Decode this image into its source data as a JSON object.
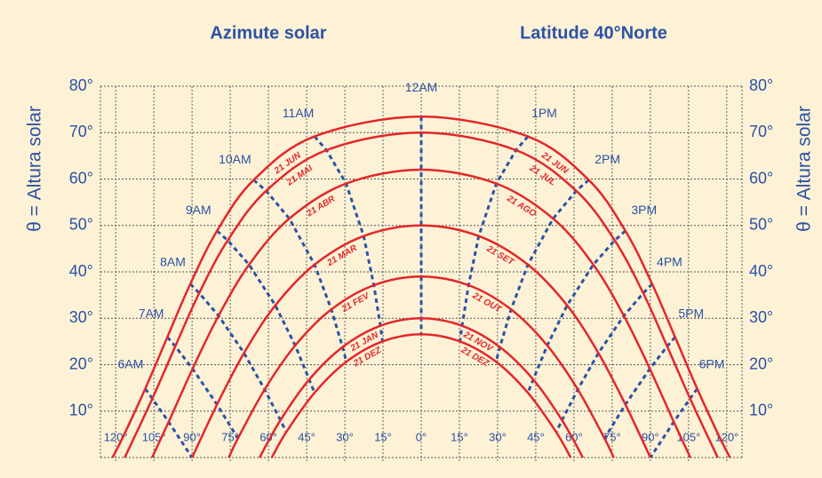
{
  "chart_data": {
    "type": "sunpath",
    "title": "Azimute solar",
    "subtitle": "Latitude 40°Norte",
    "ylabel": "θ = Altura solar",
    "xlim": [
      -126,
      126
    ],
    "ylim": [
      0,
      80
    ],
    "grid": true,
    "xticks": [
      {
        "value": -120,
        "label": "120°"
      },
      {
        "value": -105,
        "label": "105°"
      },
      {
        "value": -90,
        "label": "90°"
      },
      {
        "value": -75,
        "label": "75°"
      },
      {
        "value": -60,
        "label": "60°"
      },
      {
        "value": -45,
        "label": "45°"
      },
      {
        "value": -30,
        "label": "30°"
      },
      {
        "value": -15,
        "label": "15°"
      },
      {
        "value": 0,
        "label": "0°"
      },
      {
        "value": 15,
        "label": "15°"
      },
      {
        "value": 30,
        "label": "30°"
      },
      {
        "value": 45,
        "label": "45°"
      },
      {
        "value": 60,
        "label": "60°"
      },
      {
        "value": 75,
        "label": "75°"
      },
      {
        "value": 90,
        "label": "90°"
      },
      {
        "value": 105,
        "label": "105°"
      },
      {
        "value": 120,
        "label": "120°"
      }
    ],
    "yticks": [
      {
        "value": 10,
        "label": "10°"
      },
      {
        "value": 20,
        "label": "20°"
      },
      {
        "value": 30,
        "label": "30°"
      },
      {
        "value": 40,
        "label": "40°"
      },
      {
        "value": 50,
        "label": "50°"
      },
      {
        "value": 60,
        "label": "60°"
      },
      {
        "value": 70,
        "label": "70°"
      },
      {
        "value": 80,
        "label": "80°"
      }
    ],
    "series_color": "#e3272b",
    "hour_color": "#2c52a5",
    "series": [
      {
        "name": "21 JUN",
        "name_right": "21 JUN",
        "x": [
          -121.3,
          -117.3,
          -108.4,
          -99.7,
          -90.7,
          -80.2,
          -65.8,
          -41.9,
          0,
          41.9,
          65.8,
          80.2,
          90.7,
          99.7,
          108.4,
          117.3,
          121.3
        ],
        "values": [
          0,
          4.24,
          14.82,
          25.96,
          37.39,
          48.83,
          59.8,
          69.17,
          73.45,
          69.17,
          59.8,
          48.83,
          37.39,
          25.96,
          14.82,
          4.24,
          0
        ]
      },
      {
        "name": "21 MAI",
        "name_right": "21 JUL",
        "x": [
          -116.5,
          -114.8,
          -105.6,
          -96.6,
          -87.2,
          -76.0,
          -60.9,
          -37.2,
          0,
          37.2,
          60.9,
          76.0,
          87.2,
          96.6,
          105.6,
          114.8,
          116.5
        ],
        "values": [
          0,
          1.92,
          12.7,
          23.96,
          35.43,
          46.79,
          57.46,
          66.22,
          70,
          66.22,
          57.46,
          46.79,
          35.43,
          23.96,
          12.7,
          1.92,
          0
        ]
      },
      {
        "name": "21 ABR",
        "name_right": "21 AGO",
        "x": [
          -105.7,
          -99.2,
          -89.8,
          -79.6,
          -67.6,
          -51.8,
          -29.5,
          0,
          29.5,
          51.8,
          67.6,
          79.6,
          89.8,
          99.2,
          105.7
        ],
        "values": [
          0,
          7.68,
          19.12,
          30.54,
          41.56,
          51.48,
          59.02,
          62,
          59.02,
          51.48,
          41.56,
          30.54,
          19.12,
          7.68,
          0
        ]
      },
      {
        "name": "21 MAR",
        "name_right": "21 SET",
        "x": [
          -90,
          -80.2,
          -69.6,
          -57.3,
          -41.9,
          -22.6,
          0,
          22.6,
          41.9,
          57.3,
          69.6,
          80.2,
          90
        ],
        "values": [
          0,
          11.43,
          22.52,
          32.79,
          41.56,
          47.72,
          50,
          47.72,
          41.56,
          32.79,
          22.52,
          11.43,
          0
        ]
      },
      {
        "name": "21 FEV",
        "name_right": "21 OUT",
        "x": [
          -75.6,
          -72.0,
          -61.5,
          -49.5,
          -35.3,
          -18.6,
          0,
          18.6,
          35.3,
          49.5,
          61.5,
          72.0,
          75.6
        ],
        "values": [
          0,
          4.12,
          14.67,
          24.14,
          31.91,
          37.13,
          39,
          37.13,
          31.91,
          24.14,
          14.67,
          4.12,
          0
        ]
      },
      {
        "name": "21 JAN",
        "name_right": "21 NOV",
        "x": [
          -63.5,
          -55.3,
          -44.0,
          -30.9,
          -16.05,
          0,
          16.05,
          30.9,
          44.0,
          55.3,
          63.5
        ],
        "values": [
          0,
          8.05,
          16.81,
          23.8,
          28.39,
          30,
          28.39,
          23.8,
          16.81,
          8.05,
          0
        ]
      },
      {
        "name": "21 DEZ",
        "name_right": "21 DEZ",
        "x": [
          -58.7,
          -53.0,
          -41.9,
          -29.4,
          -15.2,
          0,
          15.2,
          29.4,
          41.9,
          53.0,
          58.7
        ],
        "values": [
          0,
          5.49,
          13.95,
          20.65,
          25.02,
          26.55,
          25.02,
          20.65,
          13.95,
          5.49,
          0
        ]
      }
    ],
    "hour_lines": [
      {
        "name": "6AM",
        "x": [
          -108.4,
          -105.6,
          -99.2,
          -90
        ],
        "values": [
          14.82,
          12.7,
          7.68,
          0
        ]
      },
      {
        "name": "7AM",
        "x": [
          -99.7,
          -96.6,
          -89.8,
          -80.2,
          -72.0
        ],
        "values": [
          25.96,
          23.96,
          19.12,
          11.43,
          4.12
        ]
      },
      {
        "name": "8AM",
        "x": [
          -90.7,
          -87.2,
          -79.6,
          -69.6,
          -61.5,
          -55.3,
          -53.0
        ],
        "values": [
          37.39,
          35.43,
          30.54,
          22.52,
          14.67,
          8.05,
          5.49
        ]
      },
      {
        "name": "9AM",
        "x": [
          -80.2,
          -76.0,
          -67.6,
          -57.3,
          -49.5,
          -44.0,
          -41.9
        ],
        "values": [
          48.83,
          46.79,
          41.56,
          32.79,
          24.14,
          16.81,
          13.95
        ]
      },
      {
        "name": "10AM",
        "x": [
          -65.8,
          -60.9,
          -51.8,
          -41.9,
          -35.3,
          -30.9,
          -29.4
        ],
        "values": [
          59.8,
          57.46,
          51.48,
          41.56,
          31.91,
          23.8,
          20.65
        ]
      },
      {
        "name": "11AM",
        "x": [
          -41.9,
          -37.2,
          -29.5,
          -22.6,
          -18.6,
          -16.05,
          -15.2
        ],
        "values": [
          69.17,
          66.22,
          59.02,
          47.72,
          37.13,
          28.39,
          25.02
        ]
      },
      {
        "name": "12AM",
        "x": [
          0,
          0,
          0,
          0,
          0,
          0,
          0
        ],
        "values": [
          73.45,
          70,
          62,
          50,
          39,
          30,
          26.55
        ]
      },
      {
        "name": "1PM",
        "x": [
          41.9,
          37.2,
          29.5,
          22.6,
          18.6,
          16.05,
          15.2
        ],
        "values": [
          69.17,
          66.22,
          59.02,
          47.72,
          37.13,
          28.39,
          25.02
        ]
      },
      {
        "name": "2PM",
        "x": [
          65.8,
          60.9,
          51.8,
          41.9,
          35.3,
          30.9,
          29.4
        ],
        "values": [
          59.8,
          57.46,
          51.48,
          41.56,
          31.91,
          23.8,
          20.65
        ]
      },
      {
        "name": "3PM",
        "x": [
          80.2,
          76.0,
          67.6,
          57.3,
          49.5,
          44.0,
          41.9
        ],
        "values": [
          48.83,
          46.79,
          41.56,
          32.79,
          24.14,
          16.81,
          13.95
        ]
      },
      {
        "name": "4PM",
        "x": [
          90.7,
          87.2,
          79.6,
          69.6,
          61.5,
          55.3,
          53.0
        ],
        "values": [
          37.39,
          35.43,
          30.54,
          22.52,
          14.67,
          8.05,
          5.49
        ]
      },
      {
        "name": "5PM",
        "x": [
          99.7,
          96.6,
          89.8,
          80.2,
          72.0
        ],
        "values": [
          25.96,
          23.96,
          19.12,
          11.43,
          4.12
        ]
      },
      {
        "name": "6PM",
        "x": [
          108.4,
          105.6,
          99.2,
          90
        ],
        "values": [
          14.82,
          12.7,
          7.68,
          0
        ]
      }
    ]
  }
}
